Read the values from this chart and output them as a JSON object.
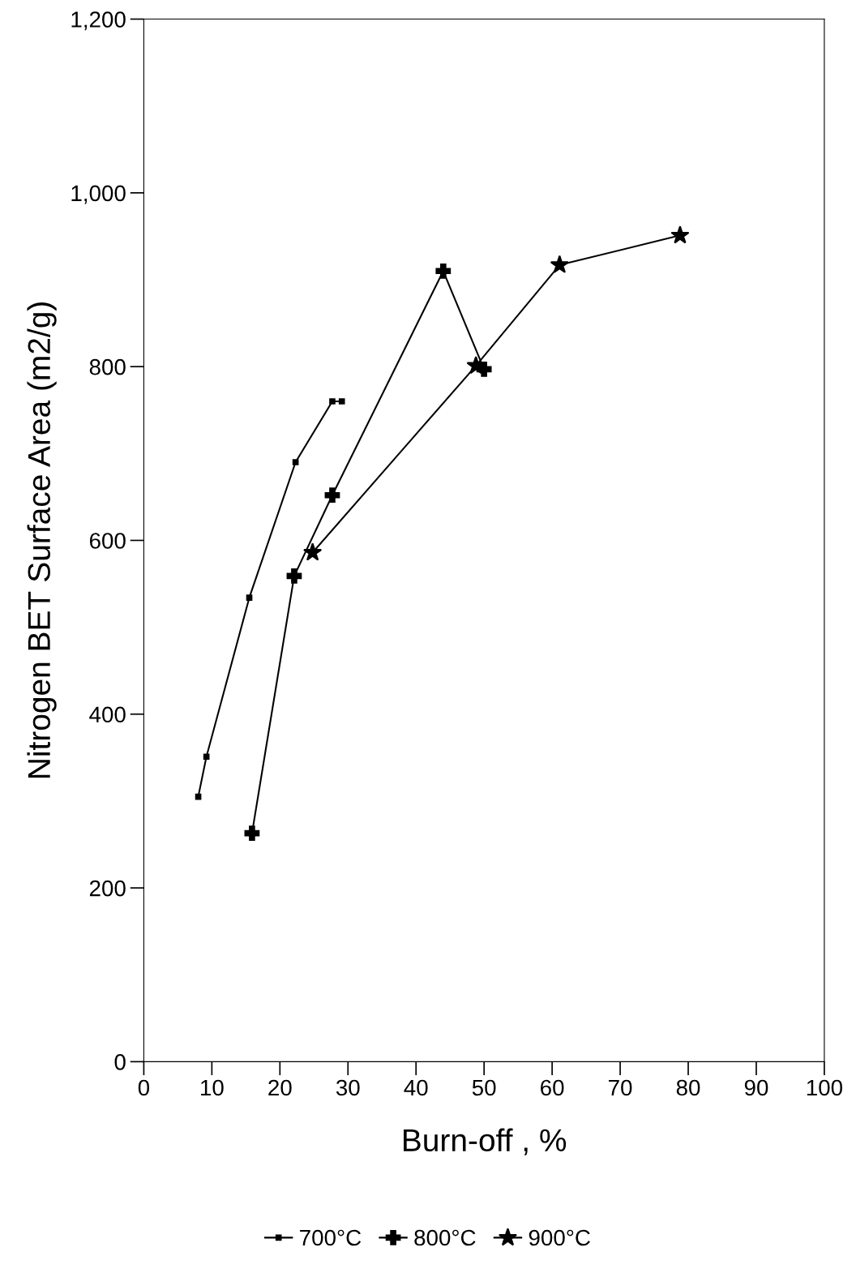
{
  "chart_data": {
    "type": "line",
    "xlabel": "Burn-off , %",
    "ylabel": "Nitrogen BET Surface Area (m2/g)",
    "xlim": [
      0,
      100
    ],
    "xticks": [
      0,
      10,
      20,
      30,
      40,
      50,
      60,
      70,
      80,
      90,
      100
    ],
    "ylim": [
      0,
      1200
    ],
    "yticks": [
      0,
      200,
      400,
      600,
      800,
      {
        "value": 1000,
        "label": "1,000"
      },
      {
        "value": 1200,
        "label": "1,200"
      }
    ],
    "grid": false,
    "legend": "bottom",
    "line_style": "solid",
    "series": [
      {
        "name": "700°C",
        "color": "#000000",
        "marker": "square",
        "x": [
          8.0,
          9.2,
          15.5,
          22.3,
          27.7,
          29.1
        ],
        "values": [
          305,
          351,
          534,
          690,
          760,
          760
        ]
      },
      {
        "name": "800°C",
        "color": "#000000",
        "marker": "cross",
        "x": [
          15.9,
          22.1,
          27.7,
          44.0,
          50.0
        ],
        "values": [
          263,
          559,
          652,
          910,
          797
        ]
      },
      {
        "name": "900°C",
        "color": "#000000",
        "marker": "star",
        "x": [
          24.8,
          48.8,
          61.1,
          78.8
        ],
        "values": [
          586,
          801,
          917,
          951
        ]
      }
    ]
  }
}
